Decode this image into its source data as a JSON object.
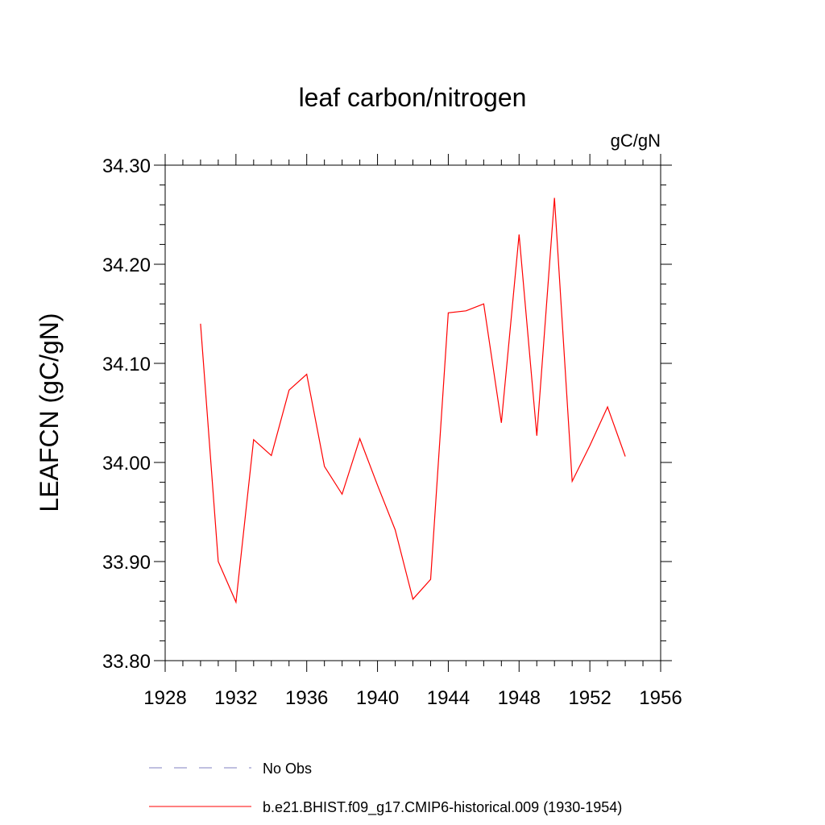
{
  "chart_data": {
    "type": "line",
    "title": "leaf carbon/nitrogen",
    "units_label": "gC/gN",
    "ylabel": "LEAFCN  (gC/gN)",
    "xlabel": "",
    "xlim": [
      1928,
      1956
    ],
    "ylim": [
      33.8,
      34.3
    ],
    "x_ticks": [
      1928,
      1932,
      1936,
      1940,
      1944,
      1948,
      1952,
      1956
    ],
    "y_ticks": [
      33.8,
      33.9,
      34.0,
      34.1,
      34.2,
      34.3
    ],
    "x_tick_labels": [
      "1928",
      "1932",
      "1936",
      "1940",
      "1944",
      "1948",
      "1952",
      "1956"
    ],
    "y_tick_labels": [
      "33.80",
      "33.90",
      "34.00",
      "34.10",
      "34.20",
      "34.30"
    ],
    "grid": false,
    "legend_position": "bottom",
    "series": [
      {
        "name": "b.e21.BHIST.f09_g17.CMIP6-historical.009 (1930-1954)",
        "color": "#ff0000",
        "dash": "solid",
        "x": [
          1930,
          1931,
          1932,
          1933,
          1934,
          1935,
          1936,
          1937,
          1938,
          1939,
          1940,
          1941,
          1942,
          1943,
          1944,
          1945,
          1946,
          1947,
          1948,
          1949,
          1950,
          1951,
          1952,
          1953,
          1954
        ],
        "y": [
          34.14,
          33.9,
          33.859,
          34.023,
          34.007,
          34.073,
          34.089,
          33.996,
          33.968,
          34.024,
          33.977,
          33.932,
          33.862,
          33.882,
          34.151,
          34.153,
          34.16,
          34.04,
          34.23,
          34.027,
          34.267,
          33.981,
          34.017,
          34.056,
          34.006
        ]
      }
    ],
    "legend": [
      {
        "label": "No Obs",
        "color": "#8080c0",
        "dash": "dashed"
      },
      {
        "label": "b.e21.BHIST.f09_g17.CMIP6-historical.009 (1930-1954)",
        "color": "#ff0000",
        "dash": "solid"
      }
    ]
  }
}
